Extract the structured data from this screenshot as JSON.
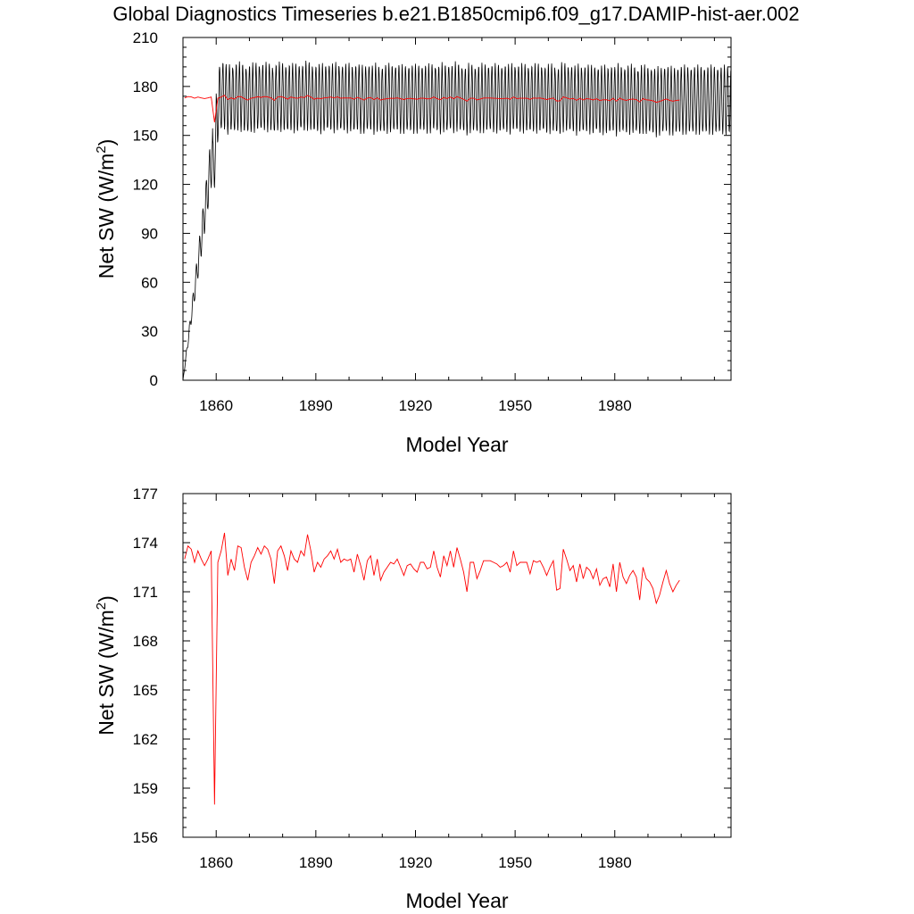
{
  "figure": {
    "title": "Global Diagnostics Timeseries b.e21.B1850cmip6.f09_g17.DAMIP-hist-aer.002"
  },
  "colors": {
    "monthly_series": "#000000",
    "annual_series": "#ff0000",
    "axes": "#000000",
    "background": "#ffffff"
  },
  "chart_data": [
    {
      "type": "line",
      "xlabel": "Model Year",
      "ylabel_main": "Net SW (W/m",
      "ylabel_sup": "2",
      "ylabel_close": ")",
      "xlim": [
        1850,
        2015
      ],
      "ylim": [
        0,
        210
      ],
      "xticks": [
        1860,
        1890,
        1920,
        1950,
        1980
      ],
      "xtick_labels": [
        "1860",
        "1890",
        "1920",
        "1950",
        "1980"
      ],
      "yticks": [
        0,
        30,
        60,
        90,
        120,
        150,
        180,
        210
      ],
      "ytick_labels": [
        "0",
        "30",
        "60",
        "90",
        "120",
        "150",
        "180",
        "210"
      ],
      "grid": false,
      "series": [
        {
          "role": "monthly",
          "color": "#000000",
          "start_year": 1850,
          "end_year": 2014,
          "initial_value": 0,
          "recovery_year": 1861,
          "seasonal_max": 190,
          "seasonal_min": 149,
          "annual_cycle_per_year": 1
        },
        {
          "role": "annual-mean",
          "color": "#ff0000",
          "ref": "annual_means"
        }
      ]
    },
    {
      "type": "line",
      "xlabel": "Model Year",
      "ylabel_main": "Net SW (W/m",
      "ylabel_sup": "2",
      "ylabel_close": ")",
      "xlim": [
        1850,
        2015
      ],
      "ylim": [
        156,
        177
      ],
      "xticks": [
        1860,
        1890,
        1920,
        1950,
        1980
      ],
      "xtick_labels": [
        "1860",
        "1890",
        "1920",
        "1950",
        "1980"
      ],
      "yticks": [
        156,
        159,
        162,
        165,
        168,
        171,
        174,
        177
      ],
      "ytick_labels": [
        "156",
        "159",
        "162",
        "165",
        "168",
        "171",
        "174",
        "177"
      ],
      "grid": false,
      "series": [
        {
          "role": "annual-mean",
          "color": "#ff0000",
          "ref": "annual_means"
        }
      ]
    }
  ],
  "annual_means": {
    "start_year": 1850,
    "values": [
      173.0,
      173.8,
      173.6,
      172.8,
      173.5,
      173.0,
      172.6,
      173.0,
      173.5,
      158.0,
      172.8,
      173.5,
      174.6,
      172.0,
      173.0,
      172.3,
      173.8,
      173.7,
      172.5,
      171.7,
      172.8,
      173.2,
      173.7,
      173.3,
      173.8,
      173.6,
      173.0,
      171.5,
      173.5,
      173.8,
      173.2,
      172.3,
      173.5,
      173.0,
      172.8,
      173.5,
      173.2,
      174.5,
      173.5,
      172.2,
      172.8,
      172.5,
      173.0,
      173.2,
      173.5,
      173.0,
      173.6,
      172.8,
      173.0,
      172.9,
      173.0,
      172.2,
      173.3,
      172.6,
      171.7,
      172.9,
      173.2,
      172.0,
      173.0,
      171.7,
      172.2,
      172.5,
      172.8,
      172.7,
      173.0,
      172.5,
      172.0,
      172.6,
      172.7,
      172.4,
      172.2,
      172.8,
      172.8,
      172.4,
      172.5,
      173.5,
      172.5,
      171.9,
      173.2,
      172.6,
      173.5,
      172.5,
      173.7,
      173.0,
      172.2,
      171.0,
      172.8,
      172.8,
      171.8,
      172.3,
      172.9,
      172.9,
      172.9,
      172.8,
      172.7,
      172.5,
      172.6,
      172.8,
      172.2,
      173.5,
      172.6,
      172.8,
      172.8,
      172.8,
      172.1,
      172.9,
      172.8,
      172.9,
      172.5,
      172.0,
      172.5,
      172.9,
      171.1,
      171.2,
      173.6,
      173.0,
      172.3,
      172.6,
      171.6,
      172.7,
      171.8,
      172.5,
      172.3,
      171.8,
      172.4,
      171.4,
      171.8,
      171.9,
      171.3,
      172.7,
      171.0,
      172.8,
      171.9,
      171.5,
      172.0,
      172.3,
      171.9,
      170.5,
      172.5,
      171.8,
      171.6,
      171.2,
      170.3,
      170.8,
      171.6,
      172.3,
      171.5,
      171.0,
      171.4,
      171.7
    ]
  }
}
